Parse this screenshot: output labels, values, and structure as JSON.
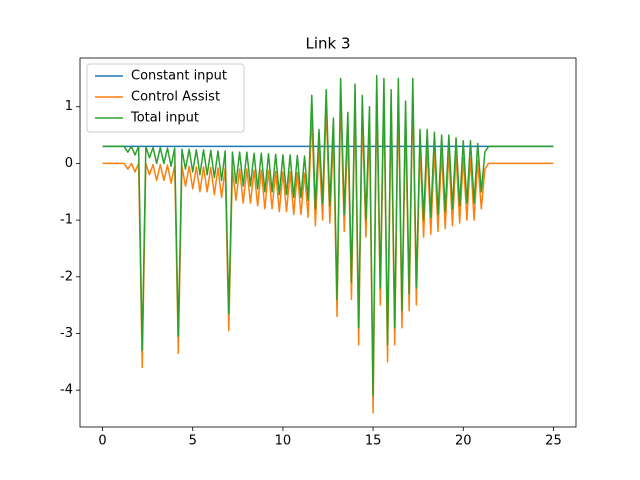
{
  "chart_data": {
    "type": "line",
    "title": "Link 3",
    "xlim": [
      -1.25,
      26.25
    ],
    "xticks": [
      0,
      5,
      10,
      15,
      20,
      25
    ],
    "ylim": [
      -4.65,
      1.86
    ],
    "yticks": [
      -4,
      -3,
      -2,
      -1,
      0,
      1
    ],
    "legend": "upper left",
    "series": [
      {
        "name": "Constant input",
        "color": "#1f77b4",
        "x": [
          0,
          25
        ],
        "values": [
          0.3,
          0.3
        ]
      },
      {
        "name": "Control Assist",
        "color": "#ff7f0e",
        "x": [
          0,
          0.2,
          0.4,
          0.6,
          0.8,
          1,
          1.2,
          1.4,
          1.6,
          1.8,
          2,
          2.2,
          2.4,
          2.6,
          2.8,
          3,
          3.2,
          3.4,
          3.6,
          3.8,
          4,
          4.2,
          4.4,
          4.6,
          4.8,
          5,
          5.2,
          5.4,
          5.6,
          5.8,
          6,
          6.2,
          6.4,
          6.6,
          6.8,
          7,
          7.2,
          7.4,
          7.6,
          7.8,
          8,
          8.2,
          8.4,
          8.6,
          8.8,
          9,
          9.2,
          9.4,
          9.6,
          9.8,
          10,
          10.2,
          10.4,
          10.6,
          10.8,
          11,
          11.2,
          11.4,
          11.6,
          11.8,
          12,
          12.2,
          12.4,
          12.6,
          12.8,
          13,
          13.2,
          13.4,
          13.6,
          13.8,
          14,
          14.2,
          14.4,
          14.6,
          14.8,
          15,
          15.2,
          15.4,
          15.6,
          15.8,
          16,
          16.2,
          16.4,
          16.6,
          16.8,
          17,
          17.2,
          17.4,
          17.6,
          17.8,
          18,
          18.2,
          18.4,
          18.6,
          18.8,
          19,
          19.2,
          19.4,
          19.6,
          19.8,
          20,
          20.2,
          20.4,
          20.6,
          20.8,
          21,
          21.2,
          21.4,
          21.6,
          21.8,
          22,
          22.2,
          22.4,
          22.6,
          22.8,
          23,
          23.2,
          23.4,
          23.6,
          23.8,
          24,
          24.2,
          24.4,
          24.6,
          24.8,
          25
        ],
        "values": [
          0,
          0,
          0,
          0,
          0,
          0,
          0,
          -0.1,
          0,
          -0.15,
          0,
          -3.6,
          0,
          -0.2,
          -0.02,
          -0.3,
          -0.02,
          -0.3,
          -0.03,
          -0.35,
          -0.03,
          -3.35,
          -0.05,
          -0.4,
          -0.05,
          -0.45,
          -0.06,
          -0.5,
          -0.06,
          -0.5,
          -0.07,
          -0.55,
          -0.08,
          -0.6,
          -0.08,
          -2.95,
          -0.1,
          -0.65,
          -0.1,
          -0.7,
          -0.1,
          -0.7,
          -0.12,
          -0.75,
          -0.12,
          -0.8,
          -0.13,
          -0.8,
          -0.14,
          -0.85,
          -0.15,
          -0.85,
          -0.15,
          -0.9,
          -0.16,
          -0.9,
          -0.17,
          -0.95,
          0.9,
          -1.1,
          0.3,
          -1.0,
          1.0,
          -1.05,
          0.5,
          -2.7,
          1.2,
          -1.2,
          0.6,
          -2.4,
          1.1,
          -3.2,
          0.9,
          -1.3,
          0.7,
          -4.4,
          1.25,
          -2.5,
          1.2,
          -3.5,
          1.0,
          -3.2,
          1.2,
          -2.9,
          0.8,
          -2.6,
          1.2,
          -2.5,
          0.3,
          -1.3,
          0.3,
          -1.25,
          0.25,
          -1.2,
          0.2,
          -1.15,
          0.2,
          -1.1,
          0.15,
          -1.05,
          0.1,
          -1.0,
          0.1,
          -1.0,
          0.05,
          -0.8,
          -0.1,
          0,
          0,
          0,
          0,
          0,
          0,
          0,
          0,
          0,
          0,
          0,
          0,
          0,
          0,
          0,
          0,
          0,
          0,
          0
        ]
      },
      {
        "name": "Total input",
        "color": "#2ca02c",
        "x": [
          0,
          0.2,
          0.4,
          0.6,
          0.8,
          1,
          1.2,
          1.4,
          1.6,
          1.8,
          2,
          2.2,
          2.4,
          2.6,
          2.8,
          3,
          3.2,
          3.4,
          3.6,
          3.8,
          4,
          4.2,
          4.4,
          4.6,
          4.8,
          5,
          5.2,
          5.4,
          5.6,
          5.8,
          6,
          6.2,
          6.4,
          6.6,
          6.8,
          7,
          7.2,
          7.4,
          7.6,
          7.8,
          8,
          8.2,
          8.4,
          8.6,
          8.8,
          9,
          9.2,
          9.4,
          9.6,
          9.8,
          10,
          10.2,
          10.4,
          10.6,
          10.8,
          11,
          11.2,
          11.4,
          11.6,
          11.8,
          12,
          12.2,
          12.4,
          12.6,
          12.8,
          13,
          13.2,
          13.4,
          13.6,
          13.8,
          14,
          14.2,
          14.4,
          14.6,
          14.8,
          15,
          15.2,
          15.4,
          15.6,
          15.8,
          16,
          16.2,
          16.4,
          16.6,
          16.8,
          17,
          17.2,
          17.4,
          17.6,
          17.8,
          18,
          18.2,
          18.4,
          18.6,
          18.8,
          19,
          19.2,
          19.4,
          19.6,
          19.8,
          20,
          20.2,
          20.4,
          20.6,
          20.8,
          21,
          21.2,
          21.4,
          21.6,
          21.8,
          22,
          22.2,
          22.4,
          22.6,
          22.8,
          23,
          23.2,
          23.4,
          23.6,
          23.8,
          24,
          24.2,
          24.4,
          24.6,
          24.8,
          25
        ],
        "values": [
          0.3,
          0.3,
          0.3,
          0.3,
          0.3,
          0.3,
          0.3,
          0.2,
          0.3,
          0.15,
          0.3,
          -3.3,
          0.3,
          0.1,
          0.28,
          0,
          0.28,
          0,
          0.27,
          -0.05,
          0.27,
          -3.05,
          0.25,
          -0.1,
          0.25,
          -0.15,
          0.24,
          -0.2,
          0.24,
          -0.2,
          0.23,
          -0.25,
          0.22,
          -0.3,
          0.22,
          -2.65,
          0.2,
          -0.35,
          0.2,
          -0.4,
          0.2,
          -0.4,
          0.18,
          -0.45,
          0.18,
          -0.5,
          0.17,
          -0.5,
          0.16,
          -0.55,
          0.15,
          -0.55,
          0.15,
          -0.6,
          0.14,
          -0.6,
          0.13,
          -0.65,
          1.2,
          -0.8,
          0.6,
          -0.7,
          1.3,
          -0.75,
          0.8,
          -2.4,
          1.5,
          -0.9,
          0.9,
          -2.1,
          1.4,
          -2.9,
          1.2,
          -1.0,
          1.0,
          -4.1,
          1.55,
          -2.2,
          1.5,
          -3.2,
          1.3,
          -2.9,
          1.5,
          -2.6,
          1.1,
          -2.3,
          1.5,
          -2.2,
          0.6,
          -1.0,
          0.6,
          -0.95,
          0.55,
          -0.9,
          0.5,
          -0.85,
          0.5,
          -0.8,
          0.45,
          -0.75,
          0.4,
          -0.7,
          0.4,
          -0.7,
          0.35,
          -0.5,
          0.2,
          0.3,
          0.3,
          0.3,
          0.3,
          0.3,
          0.3,
          0.3,
          0.3,
          0.3,
          0.3,
          0.3,
          0.3,
          0.3,
          0.3,
          0.3,
          0.3,
          0.3,
          0.3,
          0.3
        ]
      }
    ]
  }
}
